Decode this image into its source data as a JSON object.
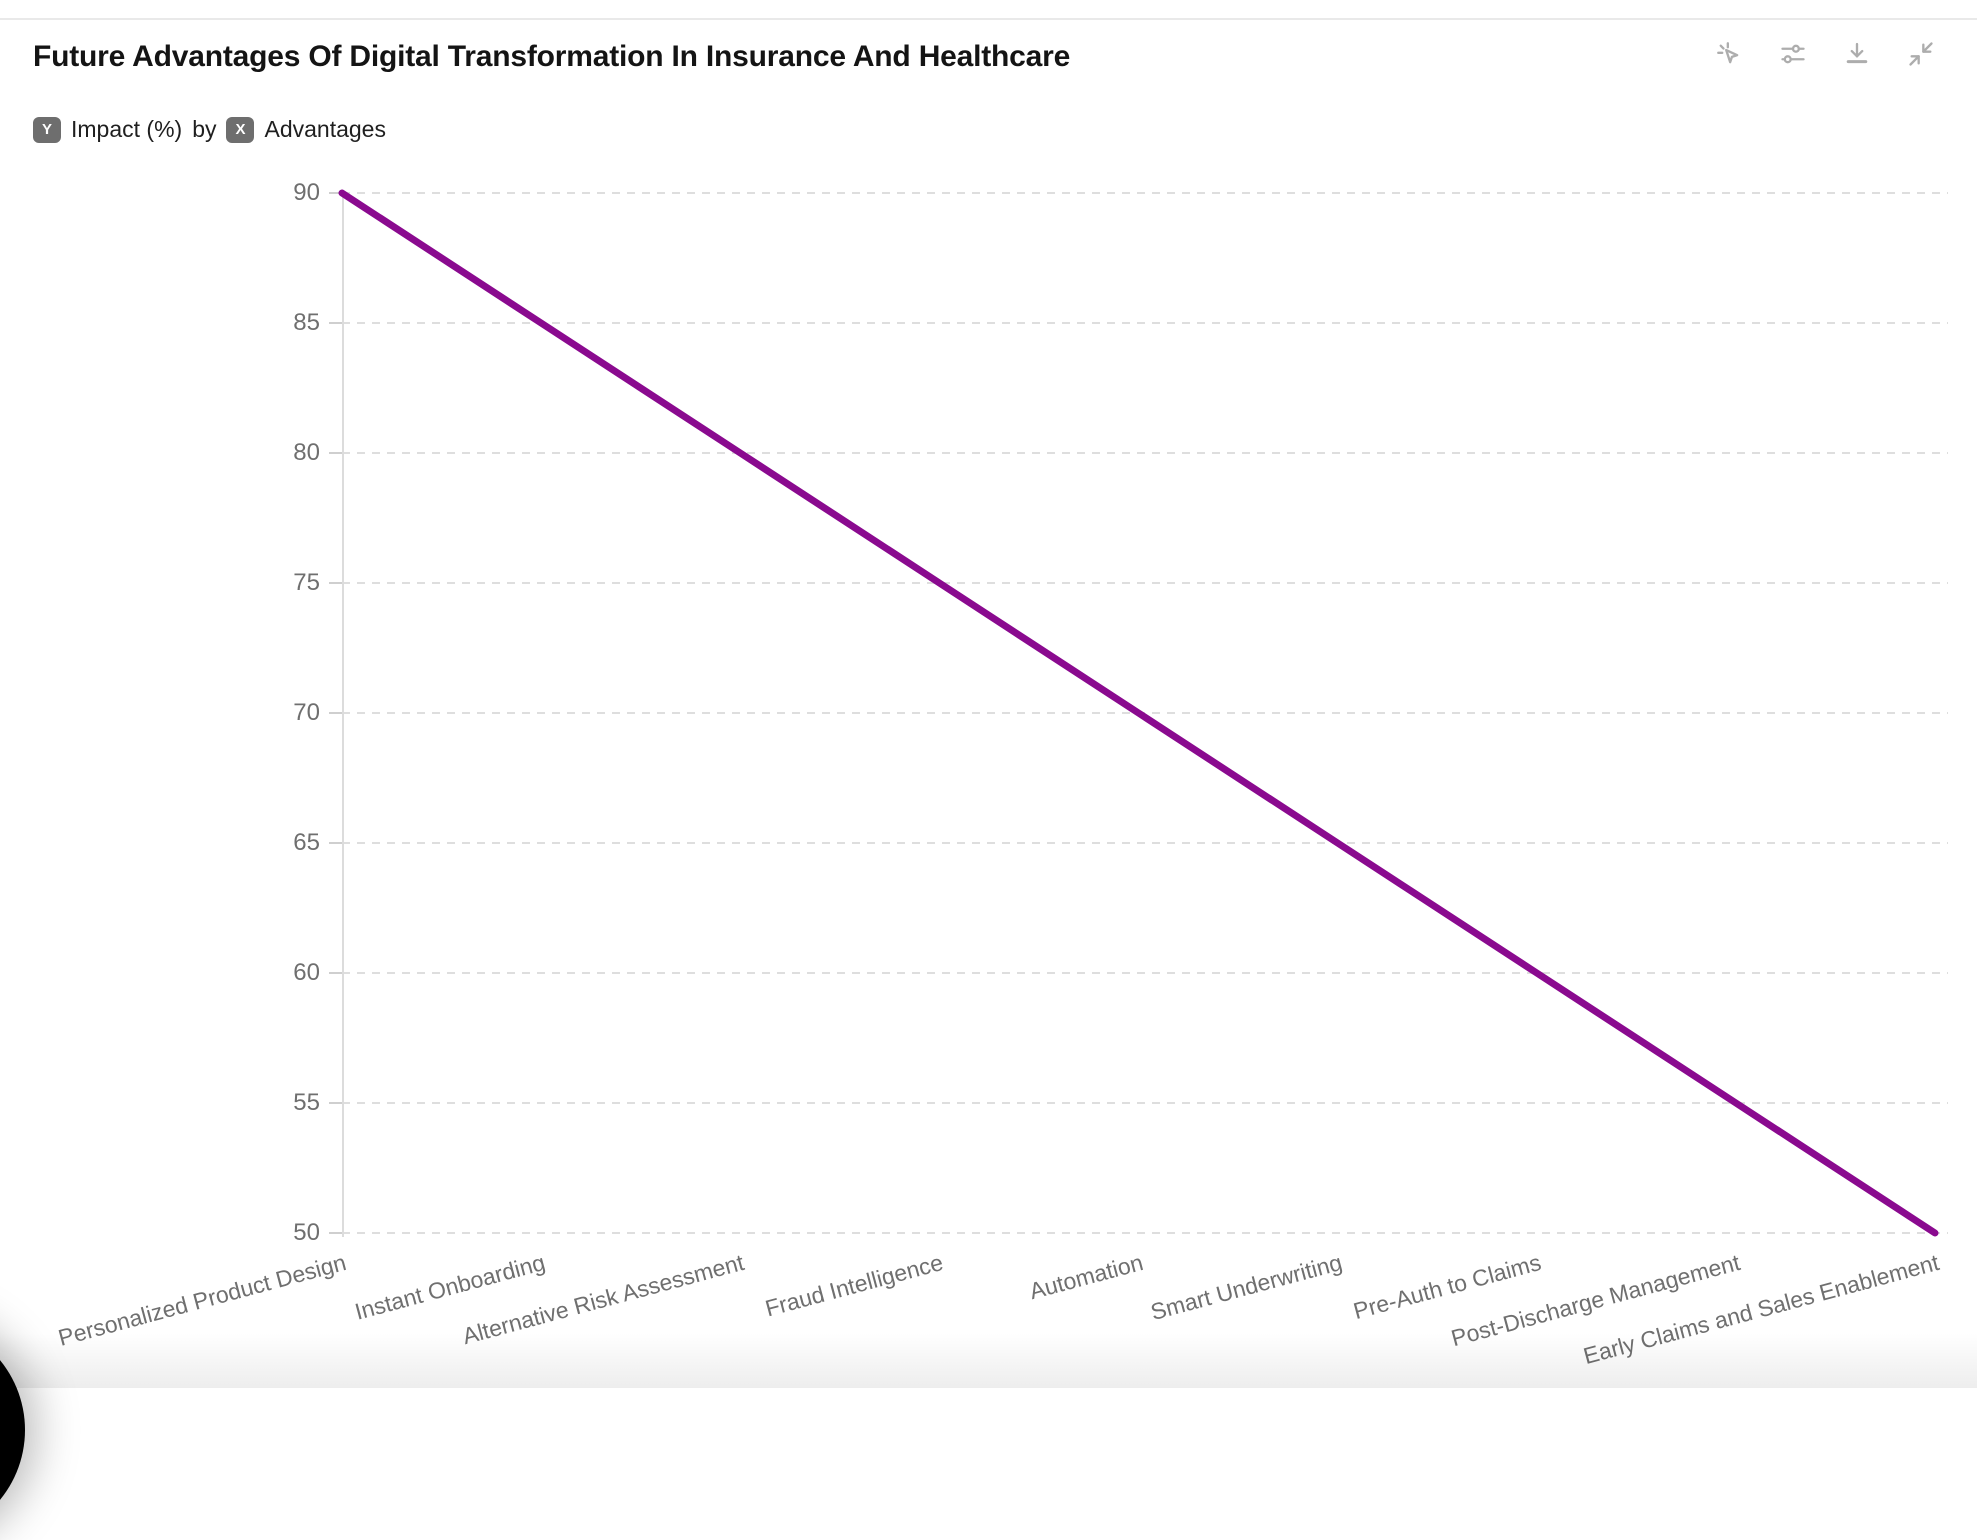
{
  "header": {
    "title": "Future Advantages Of Digital Transformation In Insurance And Healthcare",
    "subtitle": {
      "y_badge": "Y",
      "y_label": "Impact (%)",
      "connector": "by",
      "x_badge": "X",
      "x_label": "Advantages"
    }
  },
  "toolbar": {
    "icons": [
      {
        "name": "magic-click-icon"
      },
      {
        "name": "settings-sliders-icon"
      },
      {
        "name": "download-icon"
      },
      {
        "name": "collapse-icon"
      }
    ]
  },
  "colors": {
    "line": "#8a0a8f",
    "grid": "#dedede",
    "axis_label": "#6f6f6f",
    "badge_bg": "#6e6e6e",
    "icon": "#adadad",
    "title_text": "#141414"
  },
  "chart_data": {
    "type": "line",
    "title": "Future Advantages Of Digital Transformation In Insurance And Healthcare",
    "xlabel": "Advantages",
    "ylabel": "Impact (%)",
    "categories": [
      "Personalized Product Design",
      "Instant Onboarding",
      "Alternative Risk Assessment",
      "Fraud Intelligence",
      "Automation",
      "Smart Underwriting",
      "Pre-Auth to Claims",
      "Post-Discharge Management",
      "Early Claims and Sales Enablement"
    ],
    "values": [
      90,
      85,
      80,
      75,
      70,
      65,
      60,
      55,
      50
    ],
    "ylim": [
      50,
      90
    ],
    "yticks": [
      90,
      85,
      80,
      75,
      70,
      65,
      60,
      55,
      50
    ],
    "grid": "horizontal-dashed",
    "legend": "none",
    "line_color": "#8a0a8f",
    "line_width": 7
  }
}
